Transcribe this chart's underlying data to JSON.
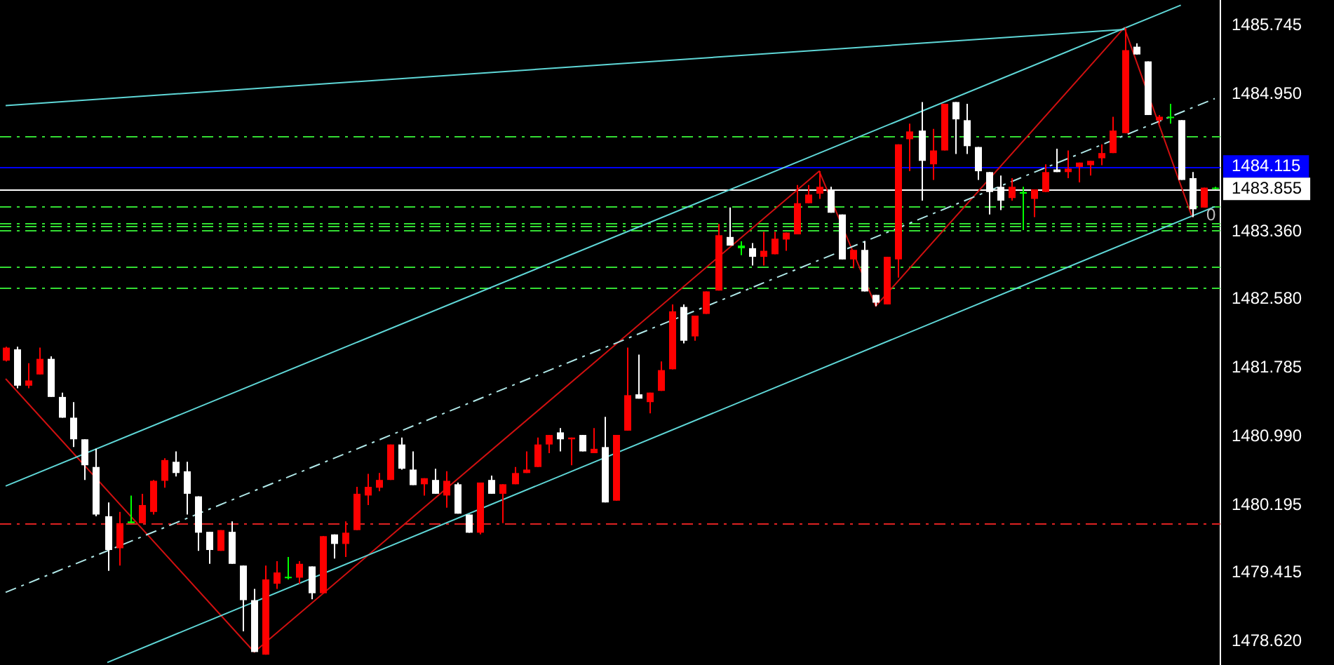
{
  "chart_data": {
    "type": "candlestick",
    "categories": [
      null,
      null,
      null,
      null,
      null,
      null,
      null,
      null,
      null,
      null,
      null,
      null,
      null,
      null,
      null,
      null,
      null,
      null,
      null,
      null,
      null,
      null,
      null,
      null,
      null,
      null,
      null,
      null,
      null,
      null,
      null,
      null,
      null,
      null,
      null,
      null,
      null,
      null,
      null,
      null,
      null,
      null,
      null,
      null,
      null,
      null,
      null,
      null,
      null,
      null,
      null,
      null,
      null,
      null,
      null,
      null,
      null,
      null,
      null,
      null,
      null,
      null,
      null,
      null,
      null,
      null,
      null,
      null,
      null,
      null,
      null,
      null,
      null,
      null,
      null,
      null,
      null,
      null,
      null,
      null,
      null,
      null,
      null,
      null,
      null,
      null,
      null,
      null,
      null,
      null,
      null,
      null,
      null,
      null,
      null,
      null,
      null,
      null,
      null,
      null,
      null,
      null,
      null,
      null,
      null,
      null,
      null,
      null
    ],
    "ohlc": [
      [
        1481.87,
        1482.03,
        1481.86,
        1482.02
      ],
      [
        1482.0,
        1482.03,
        1481.55,
        1481.58
      ],
      [
        1481.58,
        1481.84,
        1481.55,
        1481.64
      ],
      [
        1481.71,
        1482.02,
        1481.71,
        1481.89
      ],
      [
        1481.89,
        1481.92,
        1481.45,
        1481.45
      ],
      [
        1481.45,
        1481.5,
        1481.21,
        1481.21
      ],
      [
        1481.21,
        1481.39,
        1480.87,
        1480.96
      ],
      [
        1480.96,
        1480.96,
        1480.49,
        1480.66
      ],
      [
        1480.64,
        1480.85,
        1480.07,
        1480.09
      ],
      [
        1480.07,
        1480.23,
        1479.44,
        1479.68
      ],
      [
        1479.7,
        1480.12,
        1479.5,
        1479.99
      ],
      [
        1479.99,
        1480.31,
        1479.99,
        1480.01
      ],
      [
        1479.99,
        1480.33,
        1479.99,
        1480.2
      ],
      [
        1480.12,
        1480.49,
        1480.09,
        1480.48
      ],
      [
        1480.48,
        1480.74,
        1480.4,
        1480.72
      ],
      [
        1480.7,
        1480.82,
        1480.53,
        1480.57
      ],
      [
        1480.59,
        1480.7,
        1480.09,
        1480.33
      ],
      [
        1480.3,
        1480.3,
        1479.67,
        1479.88
      ],
      [
        1479.89,
        1479.89,
        1479.52,
        1479.68
      ],
      [
        1479.67,
        1479.91,
        1479.67,
        1479.91
      ],
      [
        1479.89,
        1480.01,
        1479.52,
        1479.52
      ],
      [
        1479.5,
        1479.5,
        1478.74,
        1479.1
      ],
      [
        1479.1,
        1479.23,
        1478.5,
        1478.5
      ],
      [
        1478.47,
        1479.5,
        1478.47,
        1479.34
      ],
      [
        1479.29,
        1479.55,
        1479.23,
        1479.42
      ],
      [
        1479.36,
        1479.6,
        1479.34,
        1479.37
      ],
      [
        1479.36,
        1479.55,
        1479.29,
        1479.52
      ],
      [
        1479.49,
        1479.49,
        1479.11,
        1479.18
      ],
      [
        1479.18,
        1479.84,
        1479.18,
        1479.84
      ],
      [
        1479.86,
        1479.86,
        1479.58,
        1479.75
      ],
      [
        1479.75,
        1480.01,
        1479.6,
        1479.88
      ],
      [
        1479.91,
        1480.41,
        1479.91,
        1480.33
      ],
      [
        1480.31,
        1480.56,
        1480.2,
        1480.41
      ],
      [
        1480.4,
        1480.57,
        1480.36,
        1480.49
      ],
      [
        1480.49,
        1480.9,
        1480.49,
        1480.9
      ],
      [
        1480.9,
        1480.98,
        1480.61,
        1480.62
      ],
      [
        1480.61,
        1480.82,
        1480.43,
        1480.43
      ],
      [
        1480.44,
        1480.51,
        1480.31,
        1480.51
      ],
      [
        1480.49,
        1480.62,
        1480.33,
        1480.33
      ],
      [
        1480.31,
        1480.59,
        1480.17,
        1480.48
      ],
      [
        1480.44,
        1480.46,
        1480.1,
        1480.1
      ],
      [
        1480.09,
        1480.09,
        1479.88,
        1479.88
      ],
      [
        1479.88,
        1480.46,
        1479.86,
        1480.46
      ],
      [
        1480.49,
        1480.54,
        1480.33,
        1480.33
      ],
      [
        1480.33,
        1480.44,
        1479.99,
        1480.44
      ],
      [
        1480.44,
        1480.64,
        1480.44,
        1480.57
      ],
      [
        1480.57,
        1480.82,
        1480.57,
        1480.61
      ],
      [
        1480.64,
        1480.98,
        1480.64,
        1480.9
      ],
      [
        1480.9,
        1481.01,
        1480.8,
        1481.01
      ],
      [
        1481.04,
        1481.09,
        1480.82,
        1480.96
      ],
      [
        1480.96,
        1480.98,
        1480.66,
        1480.98
      ],
      [
        1481.01,
        1481.01,
        1480.82,
        1480.82
      ],
      [
        1480.8,
        1481.09,
        1480.8,
        1480.85
      ],
      [
        1480.87,
        1481.22,
        1480.23,
        1480.23
      ],
      [
        1480.25,
        1481.01,
        1480.25,
        1481.01
      ],
      [
        1481.06,
        1482.02,
        1481.06,
        1481.47
      ],
      [
        1481.48,
        1481.94,
        1481.43,
        1481.43
      ],
      [
        1481.39,
        1481.5,
        1481.26,
        1481.5
      ],
      [
        1481.52,
        1481.86,
        1481.52,
        1481.76
      ],
      [
        1481.77,
        1482.52,
        1481.77,
        1482.44
      ],
      [
        1482.49,
        1482.52,
        1482.07,
        1482.1
      ],
      [
        1482.15,
        1482.39,
        1482.1,
        1482.39
      ],
      [
        1482.41,
        1482.67,
        1482.41,
        1482.67
      ],
      [
        1482.68,
        1483.45,
        1482.68,
        1483.32
      ],
      [
        1483.3,
        1483.64,
        1483.2,
        1483.2
      ],
      [
        1483.2,
        1483.25,
        1483.09,
        1483.17
      ],
      [
        1483.17,
        1483.23,
        1482.97,
        1483.07
      ],
      [
        1483.07,
        1483.36,
        1482.97,
        1483.14
      ],
      [
        1483.1,
        1483.36,
        1483.1,
        1483.28
      ],
      [
        1483.27,
        1483.35,
        1483.14,
        1483.35
      ],
      [
        1483.33,
        1483.9,
        1483.33,
        1483.69
      ],
      [
        1483.69,
        1483.9,
        1483.69,
        1483.79
      ],
      [
        1483.8,
        1484.06,
        1483.74,
        1483.88
      ],
      [
        1483.85,
        1483.88,
        1483.58,
        1483.58
      ],
      [
        1483.56,
        1483.56,
        1483.04,
        1483.04
      ],
      [
        1483.04,
        1483.15,
        1482.94,
        1483.15
      ],
      [
        1483.15,
        1483.25,
        1482.67,
        1482.67
      ],
      [
        1482.63,
        1482.63,
        1482.5,
        1482.54
      ],
      [
        1482.52,
        1483.07,
        1482.52,
        1483.07
      ],
      [
        1483.04,
        1484.37,
        1482.83,
        1484.37
      ],
      [
        1484.43,
        1484.61,
        1484.06,
        1484.52
      ],
      [
        1484.53,
        1484.86,
        1483.72,
        1484.18
      ],
      [
        1484.14,
        1484.55,
        1483.96,
        1484.3
      ],
      [
        1484.3,
        1484.84,
        1484.3,
        1484.84
      ],
      [
        1484.86,
        1484.86,
        1484.26,
        1484.66
      ],
      [
        1484.65,
        1484.84,
        1484.26,
        1484.35
      ],
      [
        1484.34,
        1484.34,
        1483.96,
        1484.06
      ],
      [
        1484.05,
        1484.05,
        1483.56,
        1483.82
      ],
      [
        1483.88,
        1484.01,
        1483.61,
        1483.72
      ],
      [
        1483.75,
        1483.98,
        1483.72,
        1483.88
      ],
      [
        1483.82,
        1483.88,
        1483.38,
        1483.8
      ],
      [
        1483.74,
        1483.85,
        1483.53,
        1483.85
      ],
      [
        1483.82,
        1484.14,
        1483.82,
        1484.05
      ],
      [
        1484.08,
        1484.32,
        1484.05,
        1484.05
      ],
      [
        1484.05,
        1484.3,
        1483.98,
        1484.09
      ],
      [
        1484.11,
        1484.16,
        1483.93,
        1484.16
      ],
      [
        1484.13,
        1484.18,
        1484.01,
        1484.18
      ],
      [
        1484.21,
        1484.37,
        1484.13,
        1484.27
      ],
      [
        1484.27,
        1484.69,
        1484.27,
        1484.53
      ],
      [
        1484.5,
        1485.72,
        1484.5,
        1485.46
      ],
      [
        1485.5,
        1485.54,
        1485.41,
        1485.41
      ],
      [
        1485.33,
        1485.33,
        1484.71,
        1484.71
      ],
      [
        1484.65,
        1484.71,
        1484.61,
        1484.69
      ],
      [
        1484.69,
        1484.84,
        1484.61,
        1484.68
      ],
      [
        1484.65,
        1484.65,
        1483.96,
        1483.96
      ],
      [
        1483.98,
        1484.05,
        1483.53,
        1483.62
      ],
      [
        1483.64,
        1483.87,
        1483.64,
        1483.87
      ],
      [
        1483.87,
        1483.88,
        1483.85,
        1483.87
      ]
    ],
    "colors": [
      "#ff0000",
      "#ffffff",
      "#ff0000",
      "#ff0000",
      "#ffffff",
      "#ffffff",
      "#ffffff",
      "#ffffff",
      "#ffffff",
      "#ffffff",
      "#ff0000",
      "#00ff00",
      "#ff0000",
      "#ff0000",
      "#ff0000",
      "#ffffff",
      "#ffffff",
      "#ffffff",
      "#ffffff",
      "#ff0000",
      "#ffffff",
      "#ffffff",
      "#ffffff",
      "#ff0000",
      "#ff0000",
      "#00ff00",
      "#ff0000",
      "#ffffff",
      "#ff0000",
      "#ffffff",
      "#ff0000",
      "#ff0000",
      "#ff0000",
      "#ff0000",
      "#ff0000",
      "#ffffff",
      "#ffffff",
      "#ff0000",
      "#ffffff",
      "#ff0000",
      "#ffffff",
      "#ffffff",
      "#ff0000",
      "#ffffff",
      "#ff0000",
      "#ff0000",
      "#ff0000",
      "#ff0000",
      "#ff0000",
      "#ffffff",
      "#ff0000",
      "#ffffff",
      "#ff0000",
      "#ffffff",
      "#ff0000",
      "#ff0000",
      "#ffffff",
      "#ff0000",
      "#ff0000",
      "#ff0000",
      "#ffffff",
      "#ff0000",
      "#ff0000",
      "#ff0000",
      "#ffffff",
      "#00ff00",
      "#ffffff",
      "#ff0000",
      "#ff0000",
      "#ff0000",
      "#ff0000",
      "#ff0000",
      "#ff0000",
      "#ffffff",
      "#ffffff",
      "#ff0000",
      "#ffffff",
      "#ffffff",
      "#ff0000",
      "#ff0000",
      "#ff0000",
      "#ffffff",
      "#ff0000",
      "#ff0000",
      "#ffffff",
      "#ffffff",
      "#ffffff",
      "#ffffff",
      "#ffffff",
      "#ff0000",
      "#00ff00",
      "#ff0000",
      "#ff0000",
      "#ffffff",
      "#ff0000",
      "#ff0000",
      "#ff0000",
      "#ff0000",
      "#ff0000",
      "#ff0000",
      "#ffffff",
      "#ffffff",
      "#ff0000",
      "#00ff00",
      "#ffffff",
      "#ffffff",
      "#ff0000",
      "#00ff00"
    ],
    "series": [
      {
        "type": "line",
        "color": "#5fd7d7",
        "values": [
          1484.82,
          null,
          null,
          null,
          null,
          null,
          null,
          null,
          null,
          null,
          null,
          null,
          null,
          null,
          null,
          null,
          null,
          null,
          null,
          null,
          null,
          null,
          null,
          null,
          null,
          null,
          null,
          null,
          null,
          null,
          null,
          null,
          null,
          null,
          null,
          null,
          null,
          null,
          null,
          null,
          null,
          null,
          null,
          null,
          null,
          null,
          null,
          null,
          null,
          null,
          null,
          null,
          null,
          null,
          null,
          null,
          null,
          null,
          null,
          null,
          null,
          null,
          null,
          null,
          null,
          null,
          null,
          null,
          null,
          null,
          null,
          null,
          null,
          null,
          null,
          null,
          null,
          null,
          null,
          null,
          null,
          null,
          null,
          null,
          null,
          null,
          null,
          null,
          null,
          null,
          null,
          null,
          null,
          null,
          null,
          null,
          null,
          null,
          null,
          1485.7,
          null,
          null,
          null,
          null,
          null,
          null,
          null,
          null
        ]
      },
      {
        "type": "line",
        "color": "#5fd7d7",
        "values": [
          1480.42,
          null,
          null,
          null,
          null,
          null,
          null,
          null,
          null,
          null,
          null,
          null,
          null,
          null,
          null,
          null,
          null,
          null,
          null,
          null,
          null,
          null,
          null,
          null,
          null,
          null,
          null,
          null,
          null,
          null,
          null,
          null,
          null,
          null,
          null,
          null,
          null,
          null,
          null,
          null,
          null,
          null,
          null,
          null,
          null,
          null,
          null,
          null,
          null,
          null,
          null,
          null,
          null,
          null,
          null,
          null,
          null,
          null,
          null,
          null,
          null,
          null,
          null,
          null,
          null,
          null,
          null,
          null,
          null,
          null,
          null,
          null,
          null,
          null,
          null,
          null,
          null,
          null,
          null,
          null,
          null,
          null,
          null,
          null,
          null,
          null,
          null,
          null,
          null,
          null,
          null,
          null,
          null,
          null,
          null,
          null,
          null,
          null,
          null,
          null,
          null,
          null,
          null,
          null,
          1485.98,
          null,
          null,
          null
        ]
      },
      {
        "type": "line",
        "color": "#5fd7d7",
        "values": [
          null,
          null,
          null,
          null,
          null,
          null,
          null,
          null,
          null,
          1478.38,
          null,
          null,
          null,
          null,
          null,
          null,
          null,
          null,
          null,
          null,
          null,
          null,
          null,
          null,
          null,
          null,
          null,
          null,
          null,
          null,
          null,
          null,
          null,
          null,
          null,
          null,
          null,
          null,
          null,
          null,
          null,
          null,
          null,
          null,
          null,
          null,
          null,
          null,
          null,
          null,
          null,
          null,
          null,
          null,
          null,
          null,
          null,
          null,
          null,
          null,
          null,
          null,
          null,
          null,
          null,
          null,
          null,
          null,
          null,
          null,
          null,
          null,
          null,
          null,
          null,
          null,
          null,
          null,
          null,
          null,
          null,
          null,
          null,
          null,
          null,
          null,
          null,
          null,
          null,
          null,
          null,
          null,
          null,
          null,
          null,
          null,
          null,
          null,
          null,
          null,
          null,
          null,
          null,
          null,
          null,
          null,
          null,
          1483.65
        ]
      },
      {
        "type": "line",
        "color": "#b0e8e8",
        "line_style": "dashed",
        "values": [
          1479.19,
          null,
          null,
          null,
          null,
          null,
          null,
          null,
          null,
          null,
          null,
          null,
          null,
          null,
          null,
          null,
          null,
          null,
          null,
          null,
          null,
          null,
          null,
          null,
          null,
          null,
          null,
          null,
          null,
          null,
          null,
          null,
          null,
          null,
          null,
          null,
          null,
          null,
          null,
          null,
          null,
          null,
          null,
          null,
          null,
          null,
          null,
          null,
          null,
          null,
          null,
          null,
          null,
          null,
          null,
          null,
          null,
          null,
          null,
          null,
          null,
          null,
          null,
          null,
          null,
          null,
          null,
          null,
          null,
          null,
          null,
          null,
          null,
          null,
          null,
          null,
          null,
          null,
          null,
          null,
          null,
          null,
          null,
          null,
          null,
          null,
          null,
          null,
          null,
          null,
          null,
          null,
          null,
          null,
          null,
          null,
          null,
          null,
          null,
          null,
          null,
          null,
          null,
          null,
          null,
          null,
          null,
          1484.9
        ]
      },
      {
        "type": "line",
        "color": "#d01010",
        "values": [
          1481.66,
          null,
          null,
          null,
          null,
          null,
          null,
          null,
          null,
          null,
          null,
          null,
          null,
          null,
          null,
          null,
          null,
          null,
          null,
          null,
          null,
          null,
          1478.5,
          null,
          null,
          null,
          null,
          null,
          null,
          null,
          null,
          null,
          null,
          null,
          null,
          null,
          null,
          null,
          null,
          null,
          null,
          null,
          null,
          null,
          null,
          null,
          null,
          null,
          null,
          null,
          null,
          null,
          null,
          null,
          null,
          null,
          null,
          null,
          null,
          null,
          null,
          null,
          null,
          null,
          null,
          null,
          null,
          null,
          null,
          null,
          null,
          null,
          1484.06,
          null,
          null,
          null,
          null,
          1482.5,
          null,
          null,
          null,
          null,
          null,
          null,
          null,
          null,
          null,
          null,
          null,
          null,
          null,
          null,
          null,
          null,
          null,
          null,
          null,
          null,
          null,
          1485.72,
          null,
          null,
          null,
          null,
          null,
          1483.53,
          null,
          null
        ]
      }
    ],
    "ref_lines": [
      {
        "axis": "y",
        "value": 1484.115,
        "label": "1484.115",
        "color": "#0000ff"
      },
      {
        "axis": "y",
        "value": 1483.855,
        "label": "1483.855",
        "color": "#ffffff"
      },
      {
        "axis": "y",
        "value": 1484.47,
        "color": "#33dd33",
        "line_style": "dashed"
      },
      {
        "axis": "y",
        "value": 1483.66,
        "color": "#33dd33",
        "line_style": "dashed"
      },
      {
        "axis": "y",
        "value": 1483.46,
        "color": "#33dd33",
        "line_style": "dashed"
      },
      {
        "axis": "y",
        "value": 1483.43,
        "color": "#33dd33",
        "line_style": "dashed"
      },
      {
        "axis": "y",
        "value": 1483.38,
        "color": "#33dd33",
        "line_style": "dashed"
      },
      {
        "axis": "y",
        "value": 1482.96,
        "color": "#33dd33",
        "line_style": "dashed"
      },
      {
        "axis": "y",
        "value": 1482.71,
        "color": "#33dd33",
        "line_style": "dashed"
      },
      {
        "axis": "y",
        "value": 1479.99,
        "color": "#dd2222",
        "line_style": "dashed"
      }
    ],
    "annotations": [
      {
        "text": "0",
        "y": 1483.55
      }
    ],
    "ylim": [
      1478.35,
      1486.04
    ],
    "yticks": [
      1485.745,
      {
        "value": 1484.95,
        "label": "1484.950"
      },
      {
        "value": 1483.36,
        "label": "1483.360"
      },
      {
        "value": 1482.58,
        "label": "1482.580"
      },
      1481.785,
      {
        "value": 1480.99,
        "label": "1480.990"
      },
      1480.195,
      1479.415,
      {
        "value": 1478.62,
        "label": "1478.620"
      }
    ],
    "tick_labels": "y",
    "grid": false,
    "legend": false
  }
}
